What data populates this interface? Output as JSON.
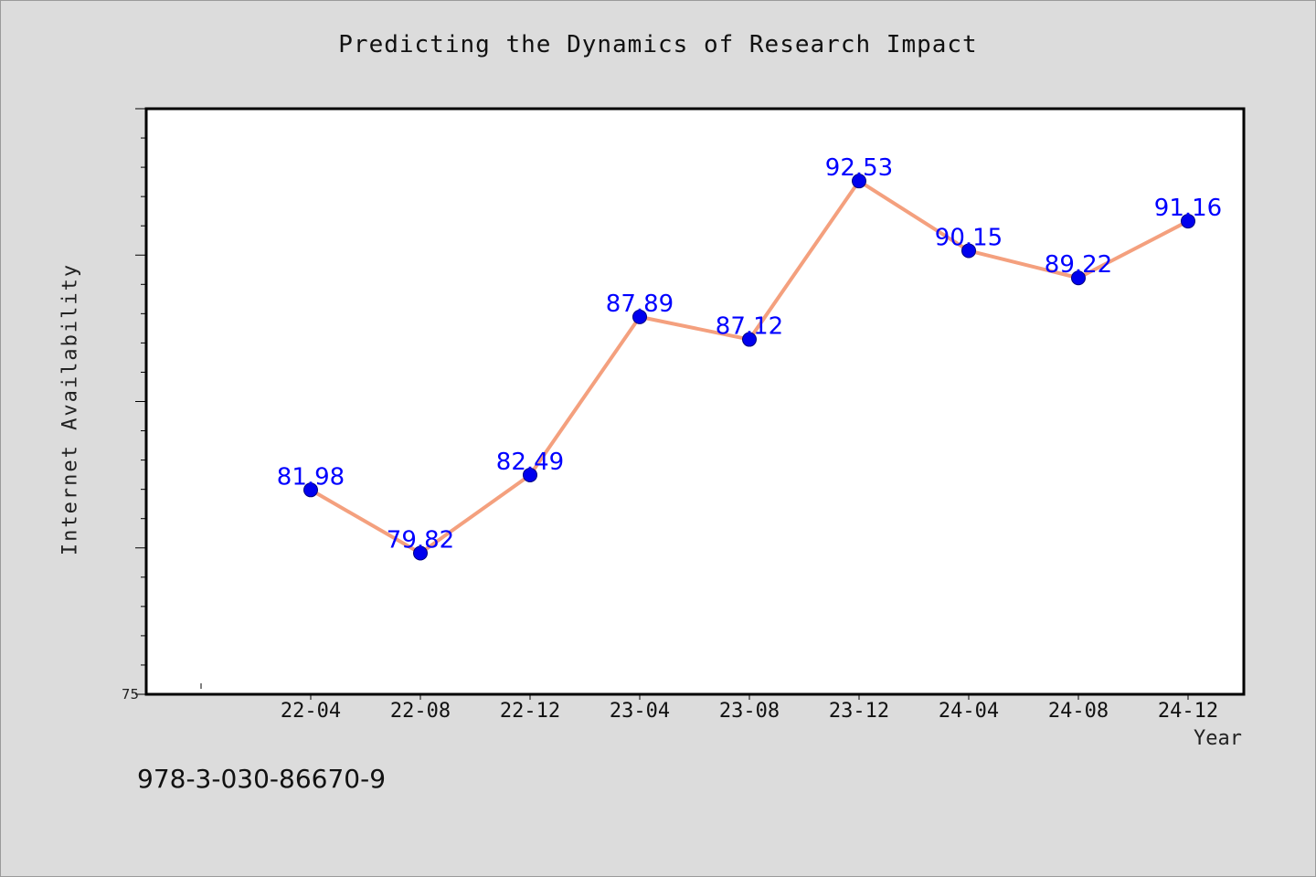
{
  "chart_data": {
    "type": "line",
    "title": "Predicting the Dynamics of Research Impact",
    "xlabel": "Year",
    "ylabel": "Internet Availability",
    "categories": [
      "22-04",
      "22-08",
      "22-12",
      "23-04",
      "23-08",
      "23-12",
      "24-04",
      "24-08",
      "24-12"
    ],
    "series": [
      {
        "values": [
          81.98,
          79.82,
          82.49,
          87.89,
          87.12,
          92.53,
          90.15,
          89.22,
          91.16
        ],
        "labels": [
          "81.98",
          "79.82",
          "82.49",
          "87.89",
          "87.12",
          "92.53",
          "90.15",
          "89.22",
          "91.16"
        ],
        "line_color": "#f4a07e",
        "marker_color": "#0000ee",
        "label_color": "#0000ff"
      }
    ],
    "y_tick_labels": [
      "75"
    ],
    "ylim": [
      75,
      95
    ],
    "y_minor_tick_step": 1,
    "grid": false,
    "legend": "none"
  },
  "footer": {
    "isbn": "978-3-030-86670-9"
  }
}
